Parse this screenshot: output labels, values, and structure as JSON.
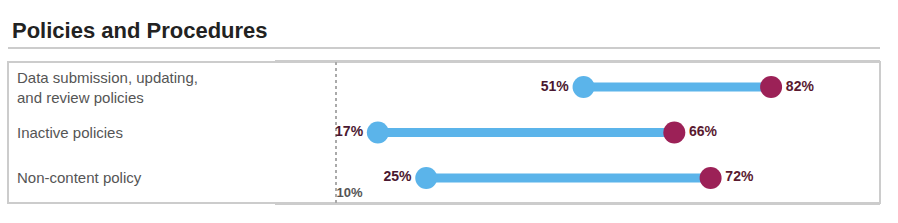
{
  "chart_data": {
    "type": "dumbbell",
    "title": "Policies and Procedures",
    "categories": [
      "Data submission, updating,\nand review policies",
      "Inactive policies",
      "Non-content policy"
    ],
    "series": [
      {
        "color": "#5bb4ea",
        "values": [
          51,
          17,
          25
        ],
        "value_labels": [
          "51%",
          "17%",
          "25%"
        ]
      },
      {
        "color": "#9c2157",
        "values": [
          82,
          66,
          72
        ],
        "value_labels": [
          "82%",
          "66%",
          "72%"
        ]
      }
    ],
    "xlim": [
      0,
      100
    ],
    "xticks": [
      {
        "value": 10,
        "label": "10%"
      }
    ],
    "grid": true,
    "data_labels": true,
    "marker": "circle",
    "tick_labels": "x"
  }
}
